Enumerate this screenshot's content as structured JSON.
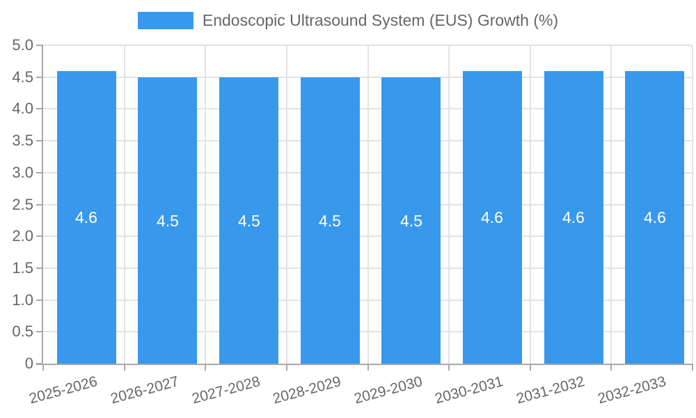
{
  "chart_data": {
    "type": "bar",
    "title": "Endoscopic Ultrasound System (EUS) Growth (%)",
    "legend": {
      "position": "top",
      "entries": [
        "Endoscopic Ultrasound System (EUS) Growth (%)"
      ]
    },
    "categories": [
      "2025-2026",
      "2026-2027",
      "2027-2028",
      "2028-2029",
      "2029-2030",
      "2030-2031",
      "2031-2032",
      "2032-2033"
    ],
    "values": [
      4.6,
      4.5,
      4.5,
      4.5,
      4.5,
      4.6,
      4.6,
      4.6
    ],
    "bar_labels": [
      "4.6",
      "4.5",
      "4.5",
      "4.5",
      "4.5",
      "4.6",
      "4.6",
      "4.6"
    ],
    "xlabel": "",
    "ylabel": "",
    "ylim": [
      0,
      5
    ],
    "ytick_labels": [
      "0",
      "0.5",
      "1.0",
      "1.5",
      "2.0",
      "2.5",
      "3.0",
      "3.5",
      "4.0",
      "4.5",
      "5.0"
    ],
    "grid": true,
    "colors": {
      "bar": "#3899EC",
      "bar_label_text": "#FFFFFF",
      "tick_text": "#666666",
      "grid": "#E3E3E3",
      "axis": "#A8A8A8",
      "background": "#FFFFFF"
    }
  }
}
